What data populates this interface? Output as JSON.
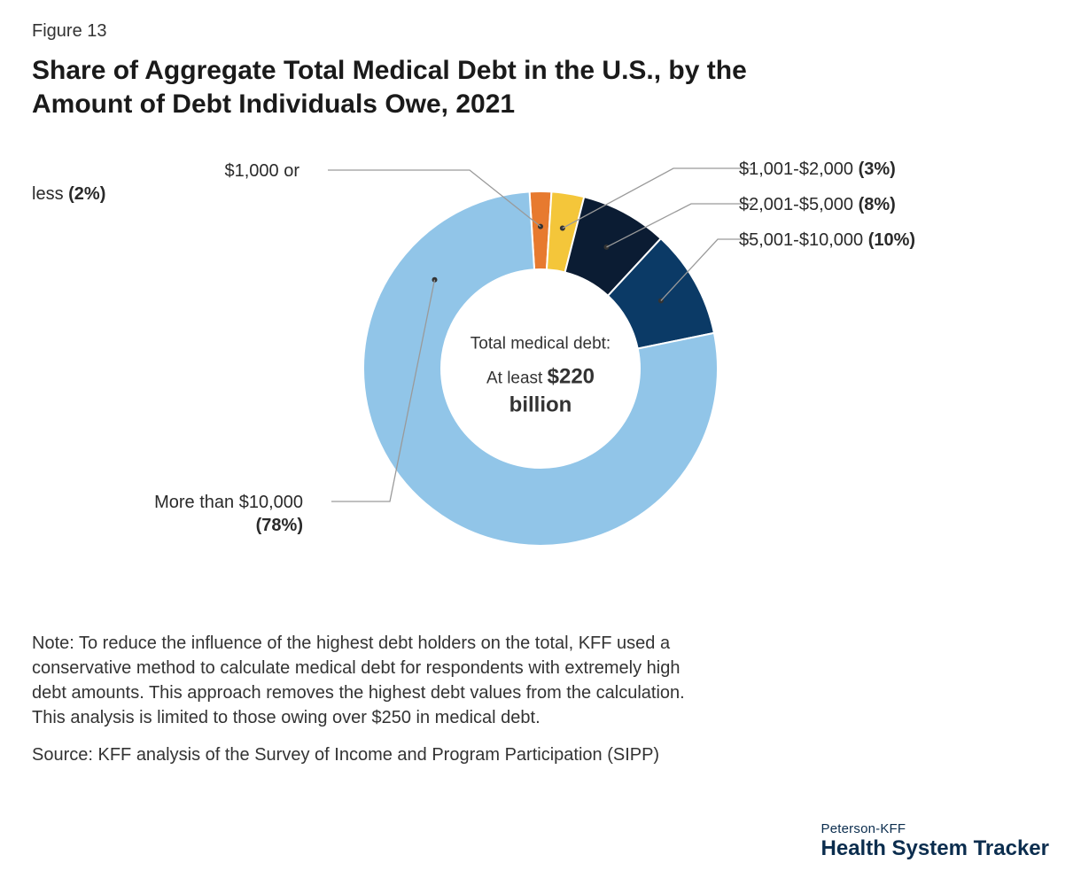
{
  "figure_number": "Figure 13",
  "title": "Share of Aggregate Total Medical Debt in the U.S., by the Amount of Debt Individuals Owe, 2021",
  "chart": {
    "type": "donut",
    "outer_radius": 200,
    "inner_radius": 112,
    "stroke_color": "#ffffff",
    "stroke_width": 2,
    "background_color": "#ffffff",
    "center_label_top": "Total medical debt:",
    "center_label_prefix": "At least",
    "center_label_amount": "$220",
    "center_label_unit": "billion",
    "slices": [
      {
        "label": "$1,000 or less",
        "value": 2,
        "pct_text": "(2%)",
        "color": "#e77a2f"
      },
      {
        "label": "$1,001-$2,000",
        "value": 3,
        "pct_text": "(3%)",
        "color": "#f4c63a"
      },
      {
        "label": "$2,001-$5,000",
        "value": 8,
        "pct_text": "(8%)",
        "color": "#0b1c33"
      },
      {
        "label": "$5,001-$10,000",
        "value": 10,
        "pct_text": "(10%)",
        "color": "#0b3a66"
      },
      {
        "label": "More than $10,000",
        "value": 78,
        "pct_text": "(78%)",
        "color": "#91c5e8"
      }
    ]
  },
  "callouts": {
    "slice0_label": "$1,000 or",
    "slice0_label2": "less",
    "slice0_pct": "(2%)",
    "slice1": "$1,001-$2,000",
    "slice1_pct": "(3%)",
    "slice2": "$2,001-$5,000",
    "slice2_pct": "(8%)",
    "slice3": "$5,001-$10,000",
    "slice3_pct": "(10%)",
    "slice4_label": "More than $10,000",
    "slice4_pct": "(78%)"
  },
  "note": "Note: To reduce the influence of the highest debt holders on the total, KFF used a conservative method to calculate medical debt for respondents with extremely high debt amounts. This approach removes the highest debt values from the calculation. This analysis is limited to those owing over $250 in medical debt.",
  "source": "Source: KFF analysis of the Survey of Income and Program Participation (SIPP)",
  "brand_top": "Peterson-KFF",
  "brand_main": "Health System Tracker",
  "typography": {
    "title_fontsize": 30,
    "body_fontsize": 20,
    "title_weight": 700,
    "text_color": "#2a2a2a"
  }
}
